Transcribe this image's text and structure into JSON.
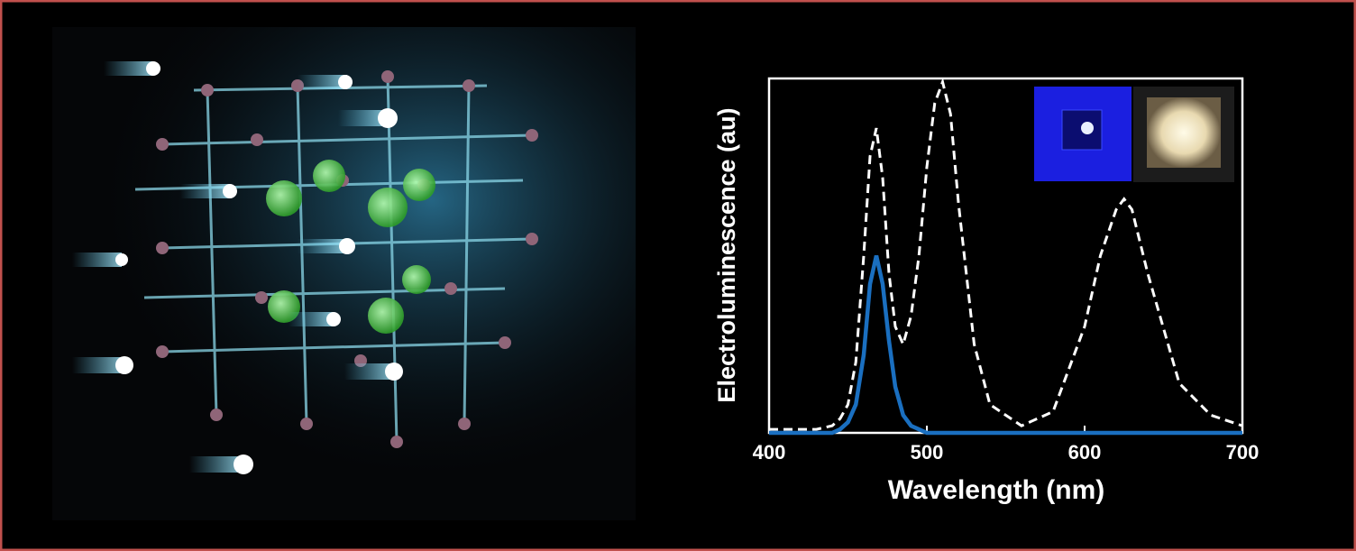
{
  "chart_data": {
    "type": "line",
    "xlabel": "Wavelength (nm)",
    "ylabel": "Electroluminescence (au)",
    "x": [
      400,
      430,
      440,
      445,
      450,
      455,
      460,
      464,
      468,
      472,
      476,
      480,
      485,
      490,
      495,
      500,
      505,
      510,
      515,
      520,
      530,
      540,
      560,
      580,
      600,
      610,
      620,
      625,
      630,
      640,
      660,
      680,
      700
    ],
    "series": [
      {
        "color": "#ffffff",
        "dashed": true,
        "values": [
          0.01,
          0.01,
          0.02,
          0.04,
          0.08,
          0.2,
          0.5,
          0.78,
          0.86,
          0.72,
          0.45,
          0.3,
          0.25,
          0.33,
          0.5,
          0.75,
          0.93,
          0.99,
          0.9,
          0.65,
          0.25,
          0.08,
          0.02,
          0.06,
          0.3,
          0.5,
          0.63,
          0.66,
          0.63,
          0.45,
          0.14,
          0.05,
          0.02
        ]
      },
      {
        "color": "#1a6fc0",
        "dashed": false,
        "values": [
          0,
          0,
          0,
          0.01,
          0.03,
          0.08,
          0.22,
          0.42,
          0.5,
          0.42,
          0.26,
          0.13,
          0.05,
          0.02,
          0.01,
          0,
          0,
          0,
          0,
          0,
          0,
          0,
          0,
          0,
          0,
          0,
          0,
          0,
          0,
          0,
          0,
          0,
          0
        ]
      }
    ],
    "xlim": [
      400,
      700
    ],
    "xticks": [
      400,
      500,
      600,
      700
    ],
    "ylim": [
      0,
      1
    ]
  }
}
